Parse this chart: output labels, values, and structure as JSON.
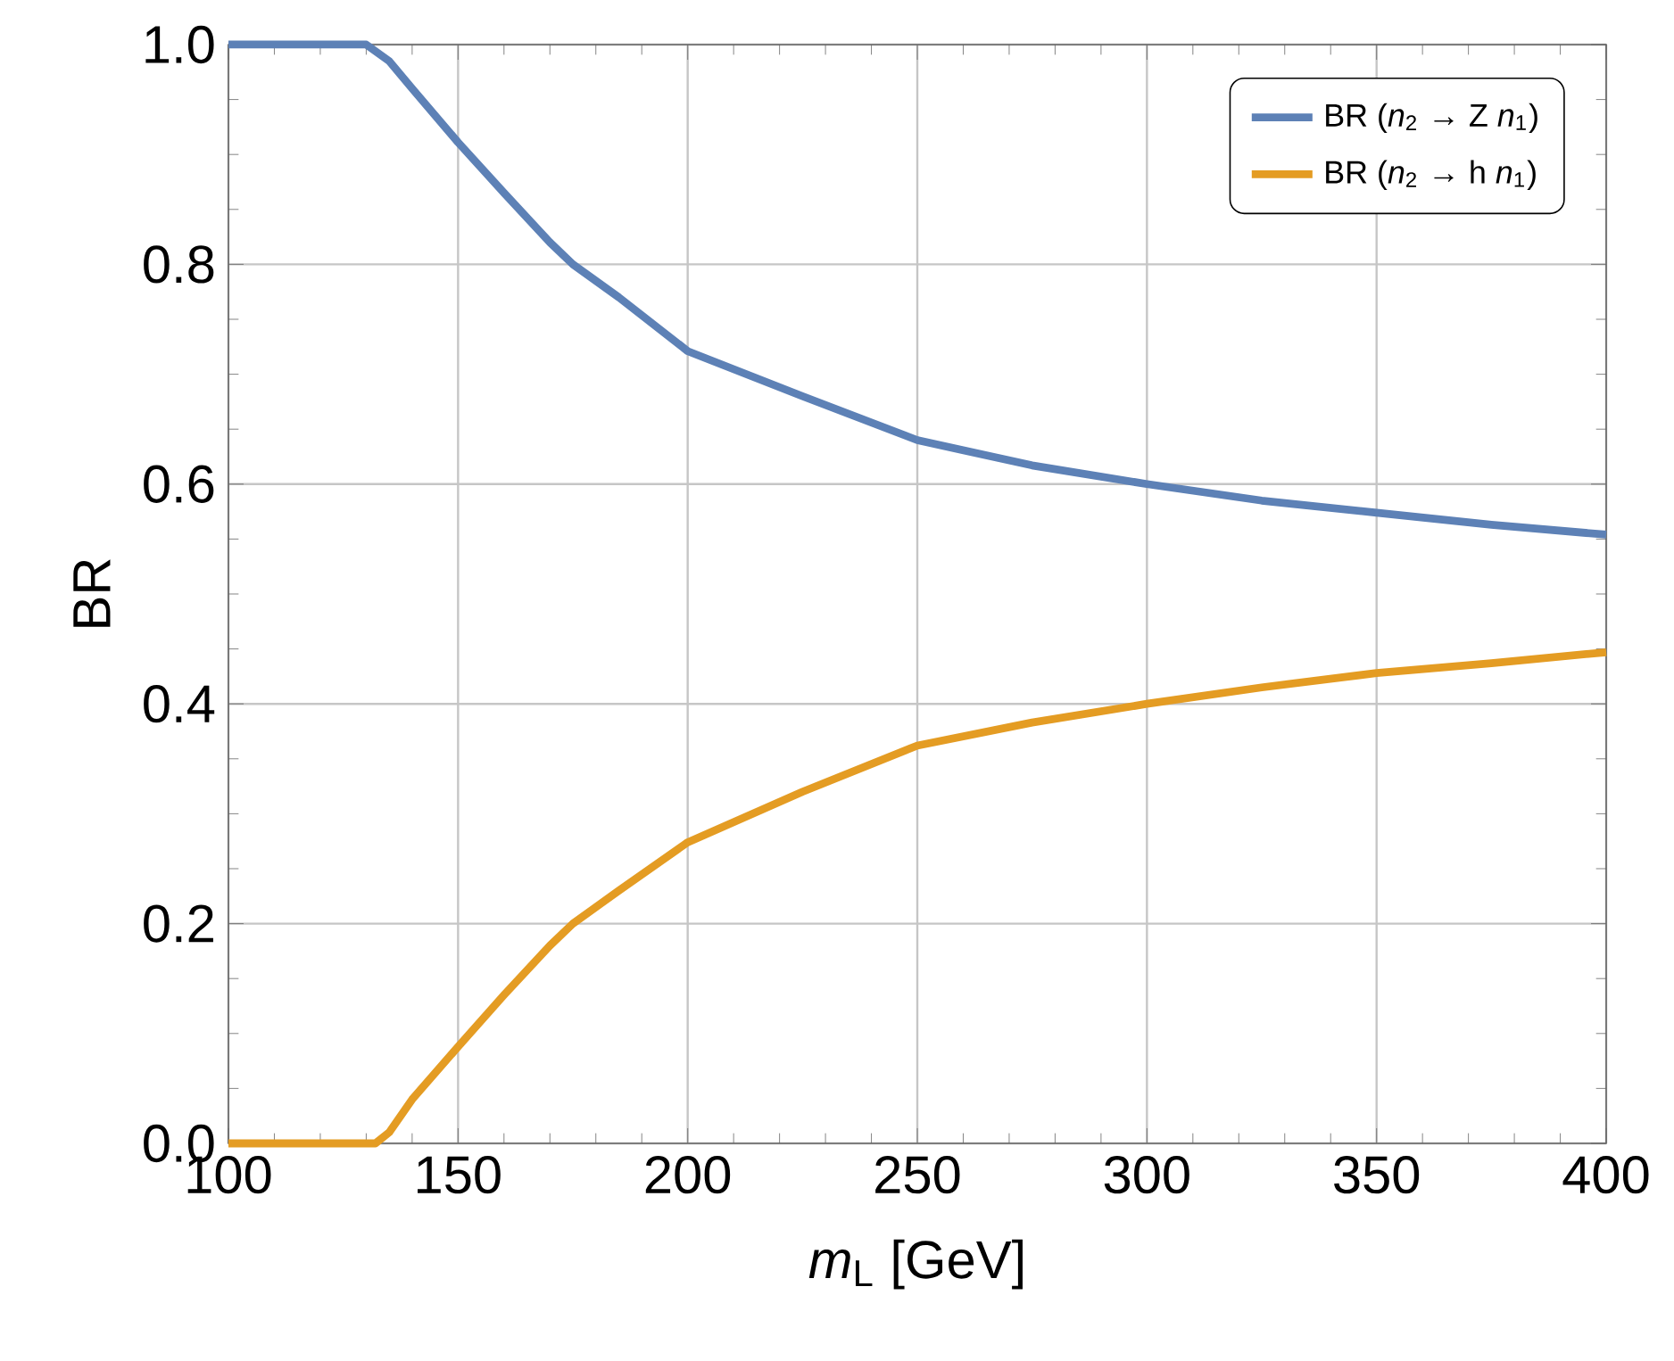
{
  "chart_data": {
    "type": "line",
    "xlabel": "*m*$_{L}$  [GeV]",
    "ylabel": "BR",
    "xlim": [
      100,
      400
    ],
    "xticks": [
      100,
      150,
      200,
      250,
      300,
      350,
      400
    ],
    "ylim": [
      0,
      1
    ],
    "yticks": [
      {
        "value": 0,
        "label": "0.0"
      },
      0.2,
      0.4,
      0.6,
      0.8,
      {
        "value": 1,
        "label": "1.0"
      }
    ],
    "grid": true,
    "legend": "top right",
    "marker": "none",
    "line_style": "solid",
    "series": [
      {
        "name": "BR (*n*$_{2}$ → Z *n*$_{1}$)",
        "color": "#5d81b6",
        "x": [
          100,
          130,
          135,
          140,
          150,
          160,
          170,
          175,
          185,
          200,
          225,
          250,
          275,
          300,
          325,
          350,
          375,
          400
        ],
        "values": [
          1.0,
          1.0,
          0.985,
          0.96,
          0.911,
          0.865,
          0.82,
          0.8,
          0.77,
          0.721,
          0.68,
          0.64,
          0.617,
          0.6,
          0.585,
          0.574,
          0.563,
          0.554
        ]
      },
      {
        "name": "BR (*n*$_{2}$ → h *n*$_{1}$)",
        "color": "#e49c23",
        "x": [
          100,
          132,
          135,
          140,
          150,
          160,
          170,
          175,
          185,
          200,
          225,
          250,
          275,
          300,
          325,
          350,
          375,
          400
        ],
        "values": [
          0.0,
          0.0,
          0.01,
          0.04,
          0.088,
          0.135,
          0.18,
          0.2,
          0.23,
          0.274,
          0.32,
          0.362,
          0.383,
          0.4,
          0.415,
          0.428,
          0.437,
          0.447
        ]
      }
    ]
  }
}
